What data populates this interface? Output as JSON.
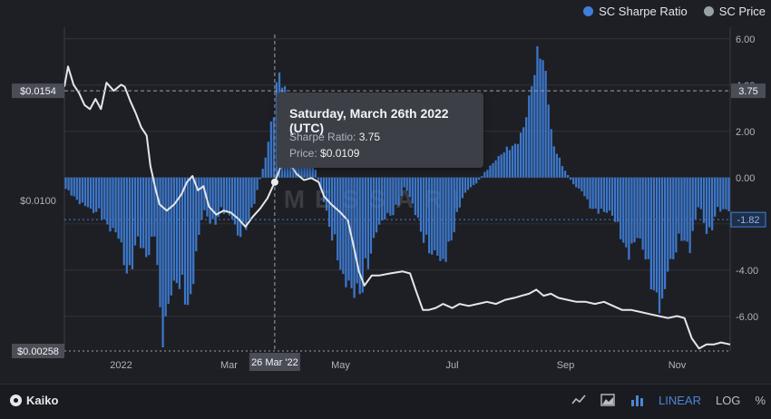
{
  "legend": [
    {
      "label": "SC Sharpe Ratio",
      "color": "#3f7fd9"
    },
    {
      "label": "SC Price",
      "color": "#9aa0a8"
    }
  ],
  "watermark": "MESSARI",
  "tooltip": {
    "title": "Saturday, March 26th 2022 (UTC)",
    "sharpe_label": "Sharpe Ratio:",
    "sharpe_value": "3.75",
    "price_label": "Price:",
    "price_value": "$0.0109"
  },
  "footer": {
    "brand": "Kaiko",
    "tools": {
      "line_icon": "line-chart-icon",
      "area_icon": "area-chart-icon",
      "bar_icon": "bar-chart-icon",
      "linear": "LINEAR",
      "log": "LOG",
      "percent": "%"
    }
  },
  "chart_data": {
    "type": "bar+line",
    "x_axis": {
      "start": "2021-12-01",
      "end": "2022-11-30",
      "tick_labels": [
        "2022",
        "Mar",
        "May",
        "Jul",
        "Sep",
        "Nov"
      ],
      "tick_dates": [
        "2022-01-01",
        "2022-03-01",
        "2022-05-01",
        "2022-07-01",
        "2022-09-01",
        "2022-11-01"
      ],
      "crosshair_label": "26 Mar '22",
      "crosshair_date": "2022-03-26"
    },
    "right_axis": {
      "name": "SC Sharpe Ratio",
      "ticks": [
        "6.00",
        "4.00",
        "2.00",
        "0.00",
        "-4.00",
        "-6.00"
      ],
      "tick_values": [
        6,
        4,
        2,
        0,
        -4,
        -6
      ],
      "range": [
        -7.5,
        6.5
      ],
      "markers": [
        {
          "label": "3.75",
          "value": 3.75
        },
        {
          "label": "-1.82",
          "value": -1.82
        }
      ]
    },
    "left_axis": {
      "name": "SC Price",
      "labels": [
        "$0.0154",
        "$0.0100",
        "$0.00258"
      ],
      "label_values": [
        0.0154,
        0.01,
        0.00258
      ],
      "scale_min": 0.00258,
      "scale_max": 0.0154
    },
    "series": [
      {
        "name": "SC Sharpe Ratio",
        "kind": "bar",
        "color": "#3f7fd9",
        "points": [
          [
            "2021-12-01",
            -0.5
          ],
          [
            "2021-12-05",
            -0.8
          ],
          [
            "2021-12-10",
            -1.3
          ],
          [
            "2021-12-15",
            -1.8
          ],
          [
            "2021-12-20",
            -1.6
          ],
          [
            "2021-12-25",
            -2.4
          ],
          [
            "2021-12-31",
            -3.4
          ],
          [
            "2022-01-05",
            -4.8
          ],
          [
            "2022-01-10",
            -2.9
          ],
          [
            "2022-01-15",
            -4.6
          ],
          [
            "2022-01-20",
            -2.4
          ],
          [
            "2022-01-22",
            -6.6
          ],
          [
            "2022-01-24",
            -7.5
          ],
          [
            "2022-01-28",
            -6.1
          ],
          [
            "2022-02-03",
            -5.5
          ],
          [
            "2022-02-08",
            -6.1
          ],
          [
            "2022-02-10",
            -4.3
          ],
          [
            "2022-02-15",
            -1.8
          ],
          [
            "2022-02-20",
            -2.4
          ],
          [
            "2022-02-25",
            -1.5
          ],
          [
            "2022-03-01",
            -2.0
          ],
          [
            "2022-03-06",
            -3.0
          ],
          [
            "2022-03-10",
            -2.4
          ],
          [
            "2022-03-15",
            -1.2
          ],
          [
            "2022-03-20",
            0.7
          ],
          [
            "2022-03-23",
            2.0
          ],
          [
            "2022-03-26",
            3.75
          ],
          [
            "2022-03-29",
            5.1
          ],
          [
            "2022-04-02",
            4.0
          ],
          [
            "2022-04-08",
            2.8
          ],
          [
            "2022-04-15",
            1.2
          ],
          [
            "2022-04-20",
            -0.6
          ],
          [
            "2022-04-25",
            -2.4
          ],
          [
            "2022-04-30",
            -3.9
          ],
          [
            "2022-05-03",
            -5.6
          ],
          [
            "2022-05-07",
            -6.1
          ],
          [
            "2022-05-12",
            -5.4
          ],
          [
            "2022-05-18",
            -3.6
          ],
          [
            "2022-05-25",
            -2.0
          ],
          [
            "2022-06-01",
            -1.5
          ],
          [
            "2022-06-05",
            -0.5
          ],
          [
            "2022-06-10",
            -1.5
          ],
          [
            "2022-06-15",
            -2.8
          ],
          [
            "2022-06-20",
            -4.0
          ],
          [
            "2022-06-25",
            -4.5
          ],
          [
            "2022-07-01",
            -2.8
          ],
          [
            "2022-07-06",
            -1.2
          ],
          [
            "2022-07-10",
            -0.6
          ],
          [
            "2022-07-15",
            -0.2
          ],
          [
            "2022-07-20",
            0.4
          ],
          [
            "2022-07-25",
            1.0
          ],
          [
            "2022-07-30",
            1.3
          ],
          [
            "2022-08-05",
            1.6
          ],
          [
            "2022-08-10",
            3.2
          ],
          [
            "2022-08-15",
            5.1
          ],
          [
            "2022-08-18",
            6.2
          ],
          [
            "2022-08-22",
            4.8
          ],
          [
            "2022-08-25",
            1.9
          ],
          [
            "2022-08-30",
            0.6
          ],
          [
            "2022-09-05",
            -0.3
          ],
          [
            "2022-09-10",
            -0.8
          ],
          [
            "2022-09-15",
            -1.5
          ],
          [
            "2022-09-20",
            -1.6
          ],
          [
            "2022-09-25",
            -1.9
          ],
          [
            "2022-09-30",
            -2.5
          ],
          [
            "2022-10-05",
            -3.7
          ],
          [
            "2022-10-10",
            -3.2
          ],
          [
            "2022-10-15",
            -4.1
          ],
          [
            "2022-10-20",
            -5.6
          ],
          [
            "2022-10-24",
            -6.5
          ],
          [
            "2022-10-28",
            -4.8
          ],
          [
            "2022-11-03",
            -2.7
          ],
          [
            "2022-11-08",
            -3.5
          ],
          [
            "2022-11-13",
            -1.5
          ],
          [
            "2022-11-18",
            -2.9
          ],
          [
            "2022-11-23",
            -1.5
          ],
          [
            "2022-11-27",
            -1.8
          ],
          [
            "2022-11-30",
            -1.82
          ]
        ]
      },
      {
        "name": "SC Price",
        "kind": "line",
        "color": "#e4e6ea",
        "points": [
          [
            "2021-12-01",
            0.0156
          ],
          [
            "2021-12-03",
            0.0166
          ],
          [
            "2021-12-06",
            0.0157
          ],
          [
            "2021-12-09",
            0.0153
          ],
          [
            "2021-12-12",
            0.0147
          ],
          [
            "2021-12-15",
            0.0145
          ],
          [
            "2021-12-18",
            0.015
          ],
          [
            "2021-12-21",
            0.0145
          ],
          [
            "2021-12-24",
            0.0158
          ],
          [
            "2021-12-28",
            0.0154
          ],
          [
            "2022-01-01",
            0.0157
          ],
          [
            "2022-01-03",
            0.0156
          ],
          [
            "2022-01-06",
            0.0149
          ],
          [
            "2022-01-09",
            0.0143
          ],
          [
            "2022-01-12",
            0.0136
          ],
          [
            "2022-01-15",
            0.0132
          ],
          [
            "2022-01-17",
            0.0117
          ],
          [
            "2022-01-20",
            0.0105
          ],
          [
            "2022-01-22",
            0.0098
          ],
          [
            "2022-01-26",
            0.0095
          ],
          [
            "2022-01-30",
            0.0098
          ],
          [
            "2022-02-03",
            0.0103
          ],
          [
            "2022-02-06",
            0.0109
          ],
          [
            "2022-02-09",
            0.0112
          ],
          [
            "2022-02-12",
            0.0105
          ],
          [
            "2022-02-15",
            0.0107
          ],
          [
            "2022-02-18",
            0.0097
          ],
          [
            "2022-02-22",
            0.0093
          ],
          [
            "2022-02-26",
            0.0095
          ],
          [
            "2022-03-02",
            0.0094
          ],
          [
            "2022-03-06",
            0.0091
          ],
          [
            "2022-03-10",
            0.0087
          ],
          [
            "2022-03-14",
            0.0092
          ],
          [
            "2022-03-18",
            0.0096
          ],
          [
            "2022-03-22",
            0.0101
          ],
          [
            "2022-03-26",
            0.0109
          ],
          [
            "2022-03-29",
            0.0116
          ],
          [
            "2022-04-01",
            0.0121
          ],
          [
            "2022-04-04",
            0.0117
          ],
          [
            "2022-04-07",
            0.0113
          ],
          [
            "2022-04-11",
            0.011
          ],
          [
            "2022-04-15",
            0.0111
          ],
          [
            "2022-04-19",
            0.0109
          ],
          [
            "2022-04-22",
            0.0102
          ],
          [
            "2022-04-26",
            0.0098
          ],
          [
            "2022-05-01",
            0.0094
          ],
          [
            "2022-05-05",
            0.009
          ],
          [
            "2022-05-08",
            0.0078
          ],
          [
            "2022-05-11",
            0.0065
          ],
          [
            "2022-05-14",
            0.0058
          ],
          [
            "2022-05-18",
            0.0063
          ],
          [
            "2022-05-22",
            0.0063
          ],
          [
            "2022-05-28",
            0.0064
          ],
          [
            "2022-06-04",
            0.0065
          ],
          [
            "2022-06-08",
            0.0064
          ],
          [
            "2022-06-11",
            0.0056
          ],
          [
            "2022-06-15",
            0.0046
          ],
          [
            "2022-06-18",
            0.0046
          ],
          [
            "2022-06-22",
            0.0047
          ],
          [
            "2022-06-26",
            0.0049
          ],
          [
            "2022-07-01",
            0.0047
          ],
          [
            "2022-07-05",
            0.0049
          ],
          [
            "2022-07-10",
            0.0048
          ],
          [
            "2022-07-15",
            0.0049
          ],
          [
            "2022-07-20",
            0.005
          ],
          [
            "2022-07-25",
            0.0049
          ],
          [
            "2022-07-30",
            0.0051
          ],
          [
            "2022-08-04",
            0.0052
          ],
          [
            "2022-08-08",
            0.0053
          ],
          [
            "2022-08-12",
            0.0054
          ],
          [
            "2022-08-16",
            0.0056
          ],
          [
            "2022-08-20",
            0.0053
          ],
          [
            "2022-08-24",
            0.0054
          ],
          [
            "2022-08-28",
            0.0052
          ],
          [
            "2022-09-02",
            0.0051
          ],
          [
            "2022-09-07",
            0.005
          ],
          [
            "2022-09-12",
            0.005
          ],
          [
            "2022-09-17",
            0.0049
          ],
          [
            "2022-09-22",
            0.005
          ],
          [
            "2022-09-27",
            0.0048
          ],
          [
            "2022-10-02",
            0.0046
          ],
          [
            "2022-10-07",
            0.0046
          ],
          [
            "2022-10-12",
            0.0045
          ],
          [
            "2022-10-17",
            0.0044
          ],
          [
            "2022-10-22",
            0.0043
          ],
          [
            "2022-10-27",
            0.0042
          ],
          [
            "2022-11-01",
            0.0043
          ],
          [
            "2022-11-05",
            0.0042
          ],
          [
            "2022-11-09",
            0.0032
          ],
          [
            "2022-11-13",
            0.0027
          ],
          [
            "2022-11-17",
            0.0029
          ],
          [
            "2022-11-21",
            0.0029
          ],
          [
            "2022-11-25",
            0.003
          ],
          [
            "2022-11-30",
            0.0029
          ]
        ]
      }
    ]
  }
}
